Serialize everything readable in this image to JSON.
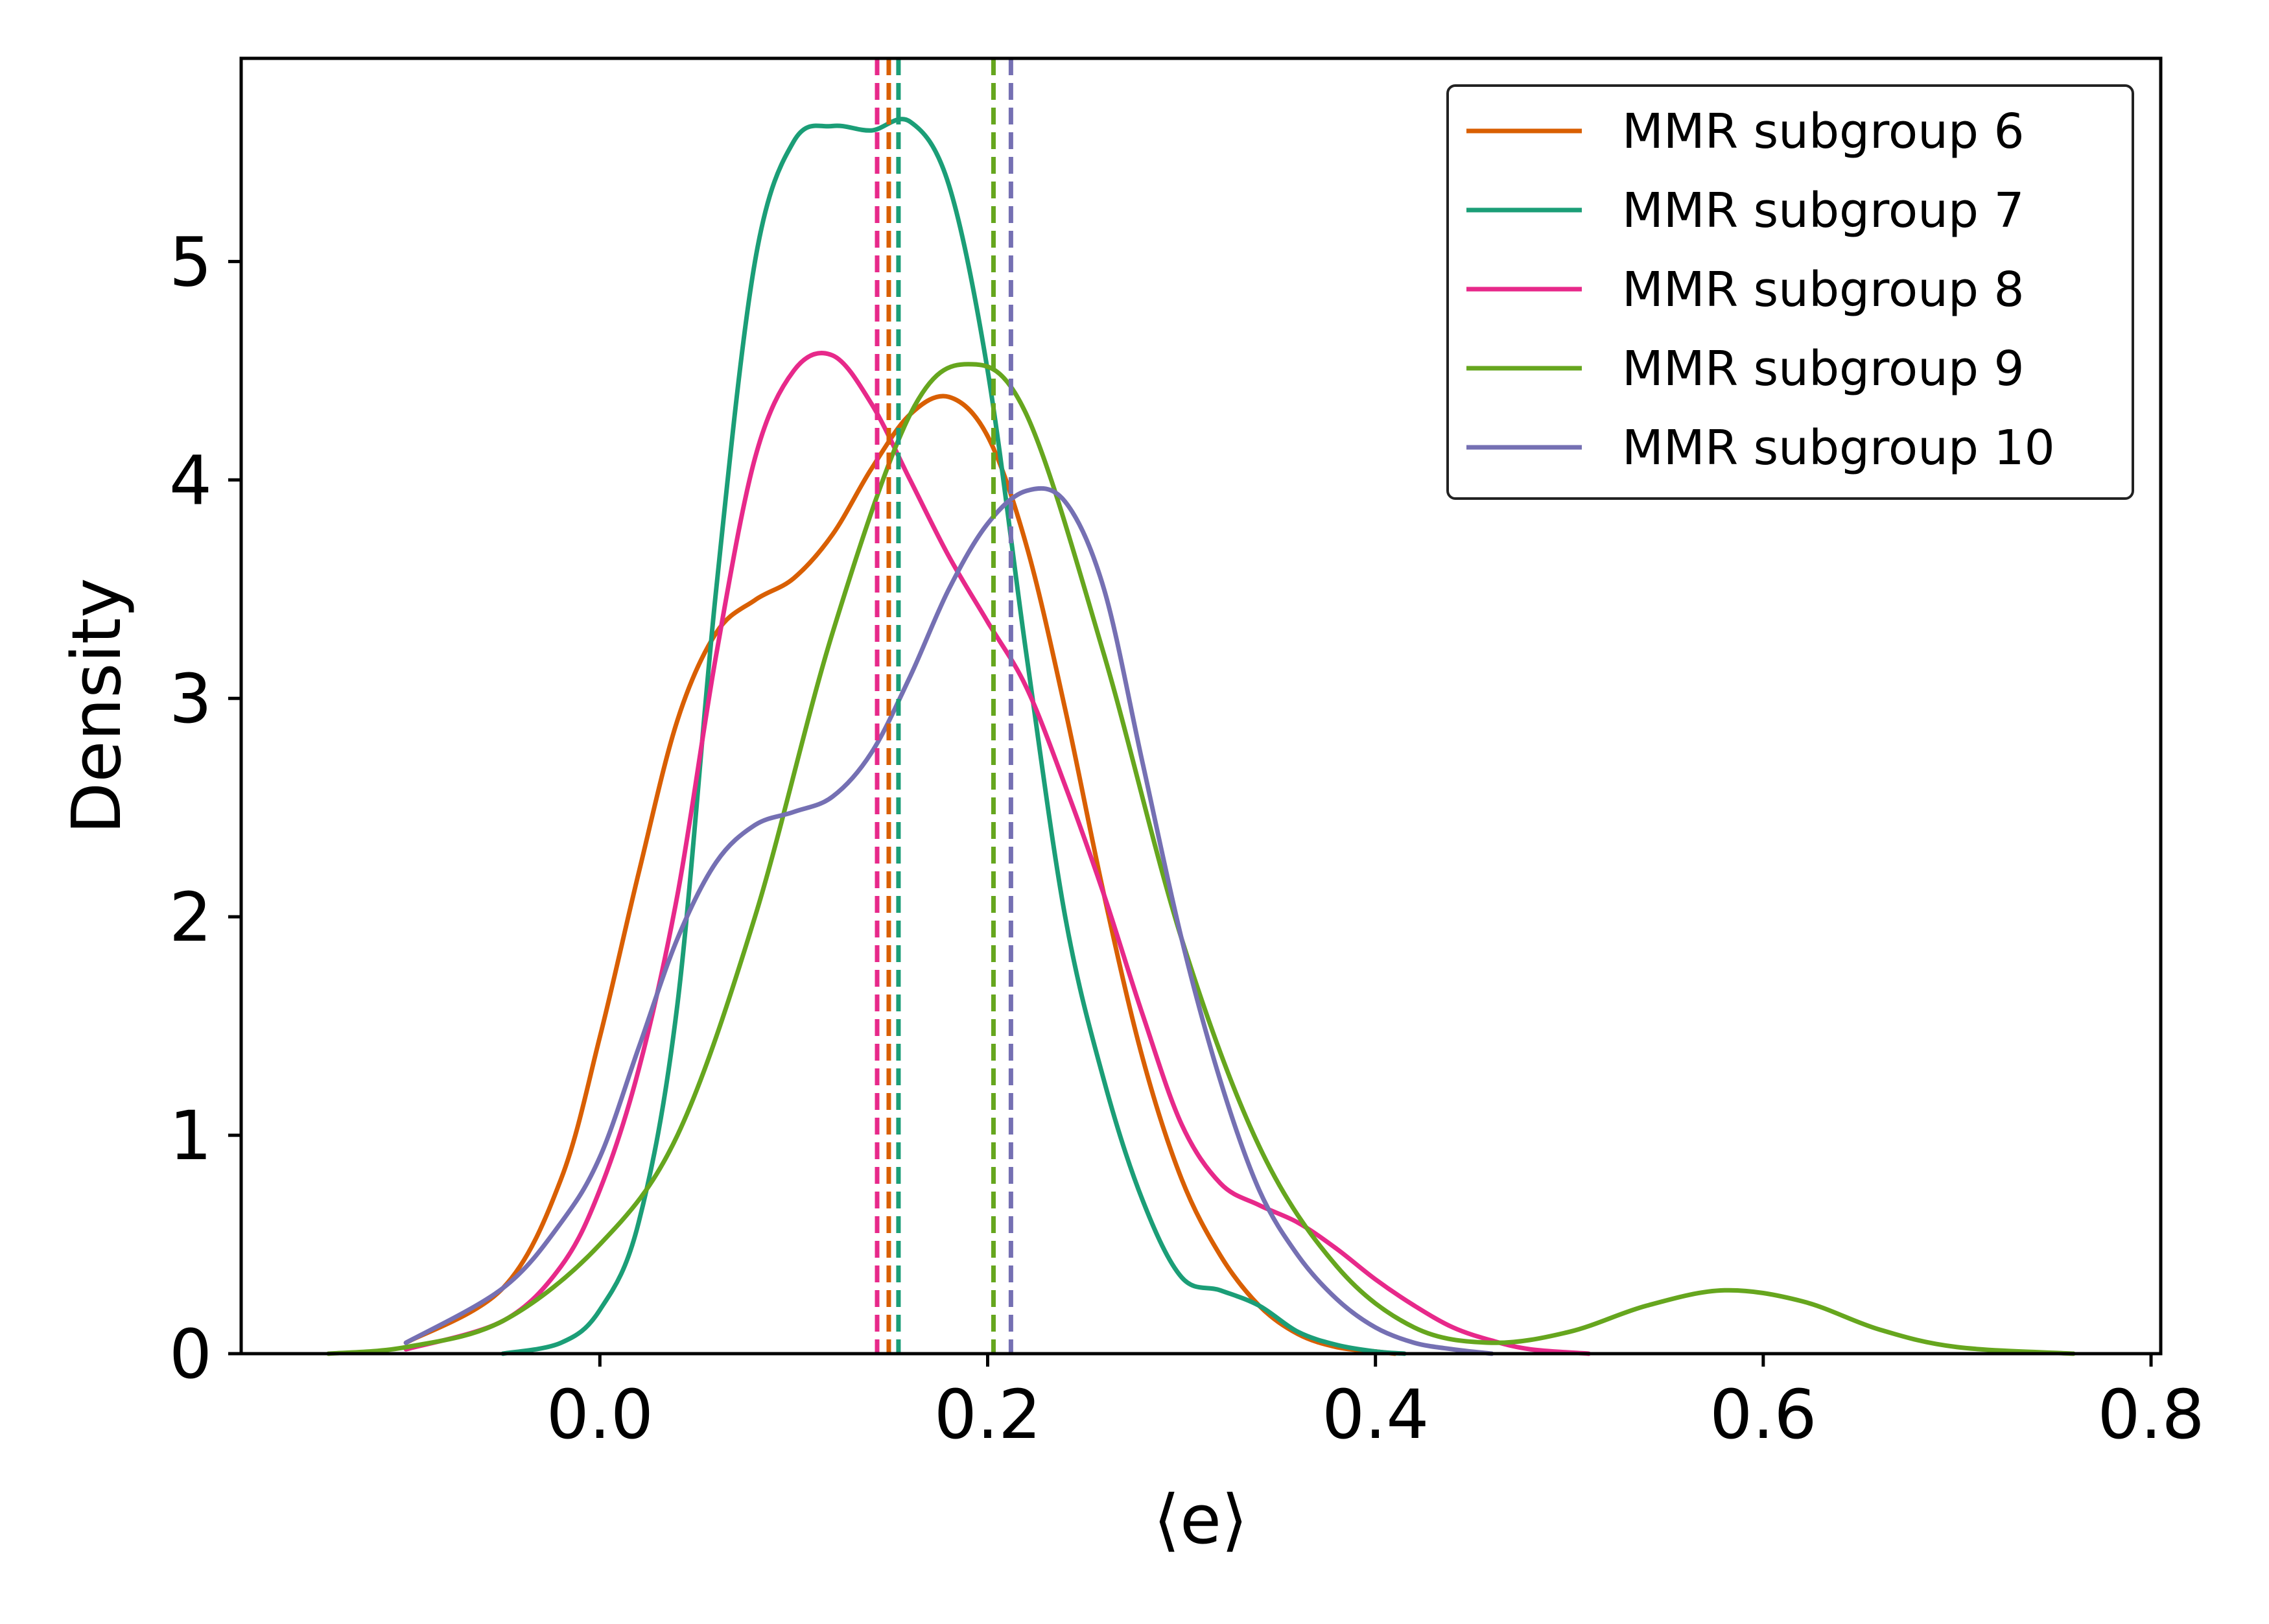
{
  "chart_data": {
    "type": "line",
    "title": "",
    "xlabel": "⟨e⟩",
    "ylabel": "Density",
    "xlim": [
      -0.185,
      0.805
    ],
    "ylim": [
      0,
      5.93
    ],
    "xticks": [
      0.0,
      0.2,
      0.4,
      0.6,
      0.8
    ],
    "xtick_labels": [
      "0.0",
      "0.2",
      "0.4",
      "0.6",
      "0.8"
    ],
    "yticks": [
      0,
      1,
      2,
      3,
      4,
      5
    ],
    "ytick_labels": [
      "0",
      "1",
      "2",
      "3",
      "4",
      "5"
    ],
    "grid": false,
    "legend_position": "top-right",
    "series": [
      {
        "name": "MMR subgroup 6",
        "color": "#d95f02",
        "mean": 0.149,
        "x": [
          -0.1,
          -0.05,
          -0.02,
          0.0,
          0.02,
          0.04,
          0.06,
          0.08,
          0.1,
          0.12,
          0.14,
          0.16,
          0.18,
          0.2,
          0.22,
          0.24,
          0.26,
          0.28,
          0.3,
          0.32,
          0.34,
          0.36,
          0.38,
          0.4,
          0.41
        ],
        "y": [
          0.05,
          0.3,
          0.8,
          1.45,
          2.2,
          2.9,
          3.3,
          3.45,
          3.55,
          3.75,
          4.05,
          4.3,
          4.38,
          4.2,
          3.7,
          2.95,
          2.1,
          1.35,
          0.8,
          0.45,
          0.22,
          0.09,
          0.03,
          0.01,
          0.0
        ]
      },
      {
        "name": "MMR subgroup 7",
        "color": "#1b9e77",
        "mean": 0.154,
        "x": [
          -0.05,
          -0.02,
          0.0,
          0.02,
          0.04,
          0.06,
          0.08,
          0.1,
          0.12,
          0.14,
          0.16,
          0.18,
          0.2,
          0.22,
          0.24,
          0.26,
          0.28,
          0.3,
          0.32,
          0.34,
          0.36,
          0.38,
          0.4,
          0.415
        ],
        "y": [
          0.0,
          0.05,
          0.2,
          0.6,
          1.6,
          3.5,
          5.0,
          5.55,
          5.62,
          5.6,
          5.64,
          5.35,
          4.5,
          3.2,
          2.0,
          1.25,
          0.7,
          0.35,
          0.29,
          0.22,
          0.1,
          0.04,
          0.01,
          0.0
        ]
      },
      {
        "name": "MMR subgroup 8",
        "color": "#e7298a",
        "mean": 0.143,
        "x": [
          -0.1,
          -0.05,
          -0.02,
          0.0,
          0.02,
          0.04,
          0.06,
          0.08,
          0.1,
          0.12,
          0.14,
          0.16,
          0.18,
          0.2,
          0.22,
          0.24,
          0.26,
          0.28,
          0.3,
          0.32,
          0.34,
          0.36,
          0.38,
          0.4,
          0.42,
          0.44,
          0.46,
          0.48,
          0.51
        ],
        "y": [
          0.02,
          0.15,
          0.4,
          0.75,
          1.3,
          2.1,
          3.2,
          4.1,
          4.5,
          4.57,
          4.35,
          4.0,
          3.65,
          3.35,
          3.05,
          2.6,
          2.1,
          1.55,
          1.05,
          0.78,
          0.68,
          0.6,
          0.48,
          0.34,
          0.22,
          0.12,
          0.06,
          0.02,
          0.0
        ]
      },
      {
        "name": "MMR subgroup 9",
        "color": "#66a61e",
        "mean": 0.203,
        "x": [
          -0.14,
          -0.1,
          -0.05,
          0.0,
          0.04,
          0.08,
          0.12,
          0.16,
          0.19,
          0.22,
          0.26,
          0.3,
          0.34,
          0.38,
          0.42,
          0.46,
          0.5,
          0.54,
          0.58,
          0.62,
          0.66,
          0.7,
          0.76
        ],
        "y": [
          0.0,
          0.03,
          0.15,
          0.5,
          1.0,
          2.0,
          3.3,
          4.3,
          4.53,
          4.3,
          3.2,
          1.9,
          0.95,
          0.4,
          0.12,
          0.05,
          0.1,
          0.22,
          0.29,
          0.24,
          0.11,
          0.03,
          0.0
        ]
      },
      {
        "name": "MMR subgroup 10",
        "color": "#7570b3",
        "mean": 0.212,
        "x": [
          -0.1,
          -0.05,
          -0.02,
          0.0,
          0.02,
          0.04,
          0.06,
          0.08,
          0.1,
          0.12,
          0.14,
          0.16,
          0.18,
          0.2,
          0.22,
          0.24,
          0.26,
          0.28,
          0.3,
          0.32,
          0.34,
          0.36,
          0.38,
          0.4,
          0.42,
          0.44,
          0.46
        ],
        "y": [
          0.05,
          0.3,
          0.6,
          0.9,
          1.4,
          1.9,
          2.25,
          2.42,
          2.48,
          2.55,
          2.75,
          3.1,
          3.5,
          3.8,
          3.95,
          3.9,
          3.5,
          2.7,
          1.9,
          1.25,
          0.75,
          0.45,
          0.25,
          0.12,
          0.05,
          0.02,
          0.0
        ]
      }
    ]
  }
}
